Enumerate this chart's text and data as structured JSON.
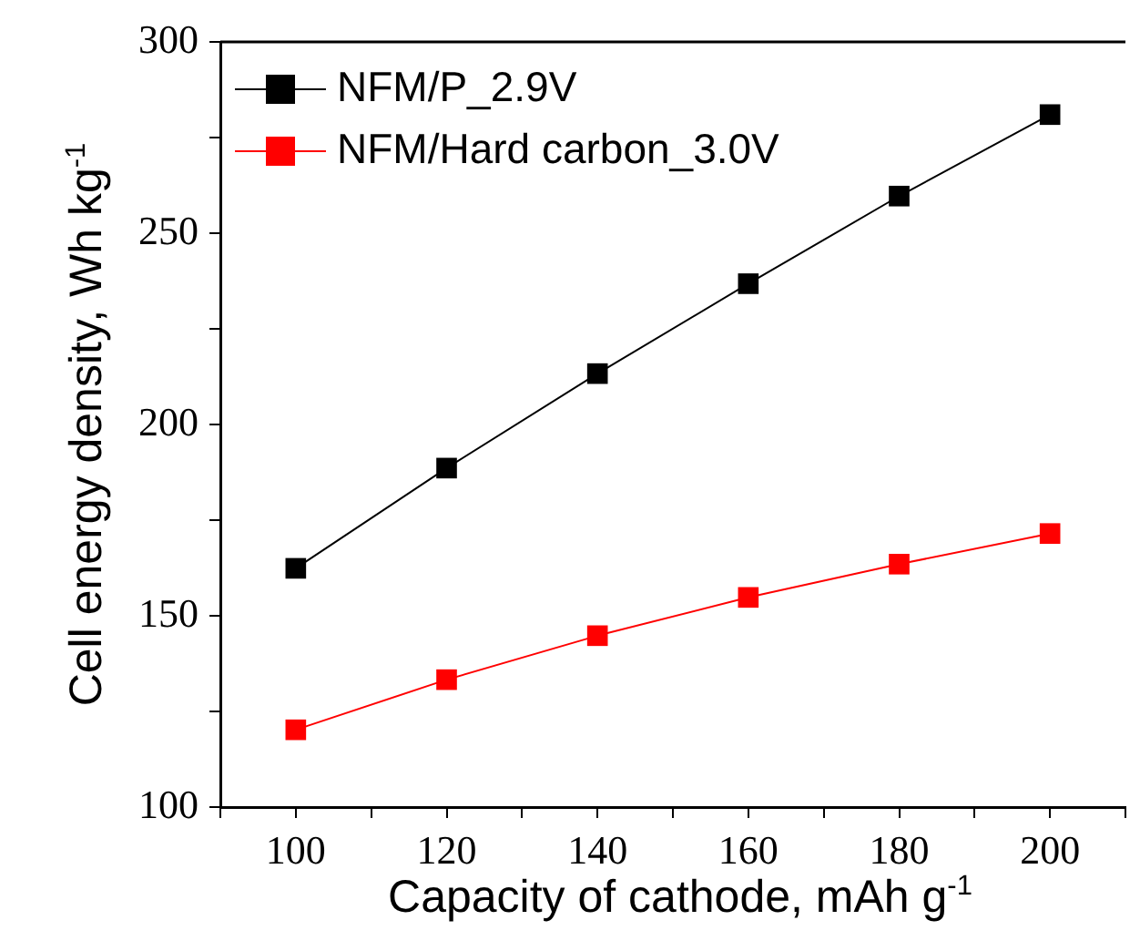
{
  "chart_data": {
    "type": "line",
    "xlabel": "Capacity of cathode, mAh g$^{-1}$",
    "ylabel": "Cell energy density, Wh kg$^{-1}$",
    "x": [
      100,
      120,
      140,
      160,
      180,
      200
    ],
    "series": [
      {
        "name": "NFM/P_2.9V",
        "color": "#000000",
        "values": [
          162.4,
          188.6,
          213.3,
          236.8,
          259.7,
          281
        ]
      },
      {
        "name": "NFM/Hard carbon_3.0V",
        "color": "#ff0000",
        "values": [
          120.2,
          133.3,
          144.8,
          154.8,
          163.5,
          171.5
        ]
      }
    ],
    "xlim": [
      90,
      210
    ],
    "xticks": [
      {
        "value": 90,
        "label": null
      },
      100,
      {
        "value": 110,
        "label": null
      },
      120,
      {
        "value": 130,
        "label": null
      },
      140,
      {
        "value": 150,
        "label": null
      },
      160,
      {
        "value": 170,
        "label": null
      },
      180,
      {
        "value": 190,
        "label": null
      },
      200,
      {
        "value": 210,
        "label": null
      }
    ],
    "ylim": [
      100,
      300
    ],
    "yticks": [
      100,
      {
        "value": 125,
        "label": null
      },
      150,
      {
        "value": 175,
        "label": null
      },
      200,
      {
        "value": 225,
        "label": null
      },
      250,
      {
        "value": 275,
        "label": null
      },
      300
    ],
    "grid": false,
    "legend": "top left",
    "marker": "square",
    "line_style": "solid"
  }
}
